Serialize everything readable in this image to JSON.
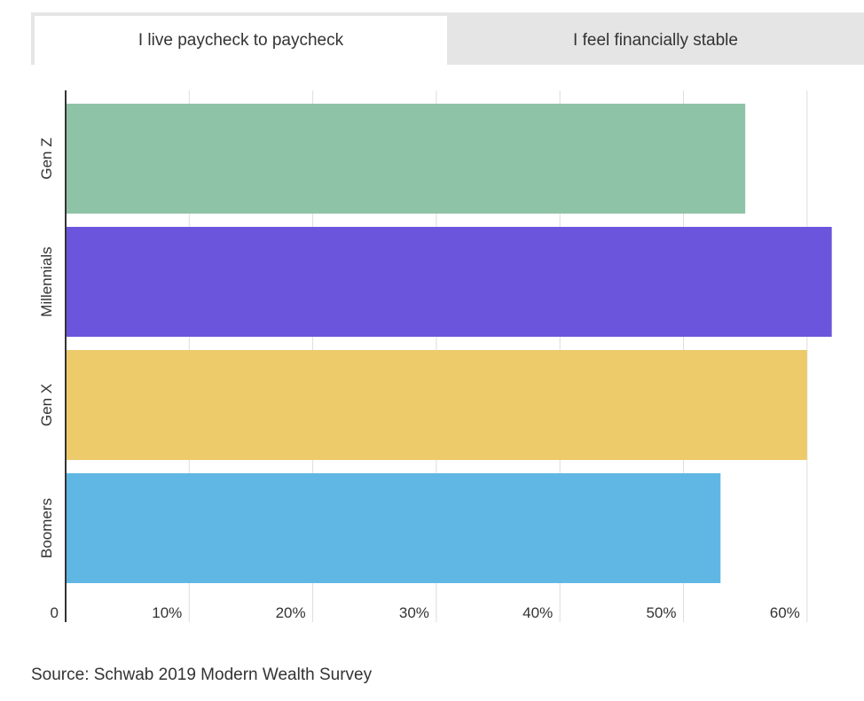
{
  "tabs": [
    {
      "label": "I live paycheck to paycheck",
      "active": true
    },
    {
      "label": "I feel financially stable",
      "active": false
    }
  ],
  "source": "Source: Schwab 2019 Modern Wealth Survey",
  "chart_data": {
    "type": "bar",
    "orientation": "horizontal",
    "categories": [
      "Gen Z",
      "Millennials",
      "Gen X",
      "Boomers"
    ],
    "values": [
      55,
      62,
      60,
      53
    ],
    "colors": [
      "#8fc3a7",
      "#6b55dc",
      "#edca6a",
      "#61b7e4"
    ],
    "xlim": [
      0,
      62
    ],
    "x_ticks": [
      0,
      10,
      20,
      30,
      40,
      50,
      60
    ],
    "x_tick_labels": [
      "0",
      "10%",
      "20%",
      "30%",
      "40%",
      "50%",
      "60%"
    ],
    "grid": true,
    "title": "",
    "xlabel": "",
    "ylabel": ""
  }
}
